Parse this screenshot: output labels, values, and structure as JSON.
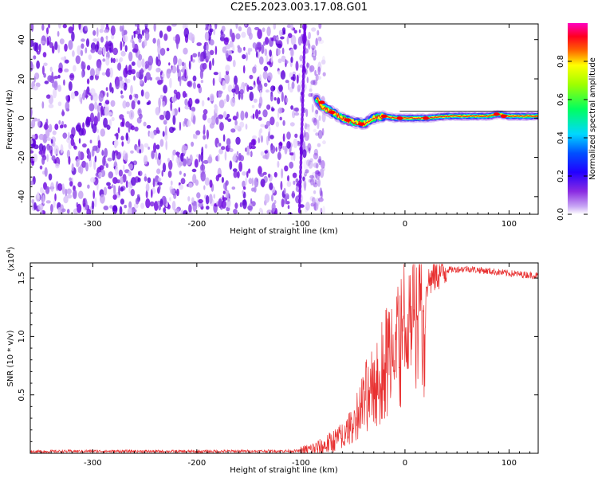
{
  "title": "C2E5.2023.003.17.08.G01",
  "chart_data": [
    {
      "type": "heatmap",
      "xlabel": "Height of straight line (km)",
      "ylabel": "Frequency (Hz)",
      "xlim": [
        -360,
        128
      ],
      "ylim": [
        -49,
        48
      ],
      "xticks": [
        -300,
        -200,
        -100,
        0,
        100
      ],
      "yticks": [
        -40,
        -20,
        0,
        20,
        40
      ],
      "colorbar": {
        "label": "Normalized spectral amplitude",
        "range": [
          0.0,
          1.0
        ],
        "ticks": [
          "0.0",
          "0.2",
          "0.4",
          "0.6",
          "0.8"
        ],
        "colormap": [
          "#ffffff",
          "#8a2be2",
          "#0000ff",
          "#00ffff",
          "#00ff00",
          "#ffff00",
          "#ff0000",
          "#ff00ff"
        ]
      },
      "noise_region": {
        "x": [
          -360,
          -85
        ],
        "y": [
          -49,
          48
        ]
      },
      "signal_trace": {
        "x": [
          -85,
          -80,
          -70,
          -60,
          -50,
          -40,
          -30,
          -20,
          -10,
          0,
          20,
          40,
          60,
          80,
          90,
          100,
          128
        ],
        "y": [
          10,
          6,
          3,
          0,
          -2,
          -3,
          0,
          1,
          0,
          0,
          0,
          1,
          1,
          1,
          2,
          1,
          1
        ]
      }
    },
    {
      "type": "line",
      "xlabel": "Height of straight line (km)",
      "ylabel": "SNR (10 * v/v)",
      "yscale_label": "(x10",
      "yscale_exp": "4",
      "yscale_close": ")",
      "xlim": [
        -360,
        128
      ],
      "ylim": [
        0,
        16300
      ],
      "xticks": [
        -300,
        -200,
        -100,
        0,
        100
      ],
      "yticks": [
        0.5,
        1.0,
        1.5
      ],
      "ytick_labels": [
        "0.5",
        "1.0",
        "1.5"
      ],
      "series": [
        {
          "color": "#e83030",
          "x": [
            -360,
            -300,
            -200,
            -100,
            -80,
            -60,
            -50,
            -40,
            -30,
            -20,
            -10,
            0,
            10,
            20,
            30,
            40,
            60,
            80,
            100,
            128
          ],
          "y": [
            150,
            180,
            160,
            200,
            500,
            1500,
            3000,
            5000,
            7000,
            8500,
            10500,
            12000,
            13500,
            14500,
            15300,
            15700,
            15800,
            15600,
            15400,
            15200
          ]
        }
      ]
    }
  ]
}
